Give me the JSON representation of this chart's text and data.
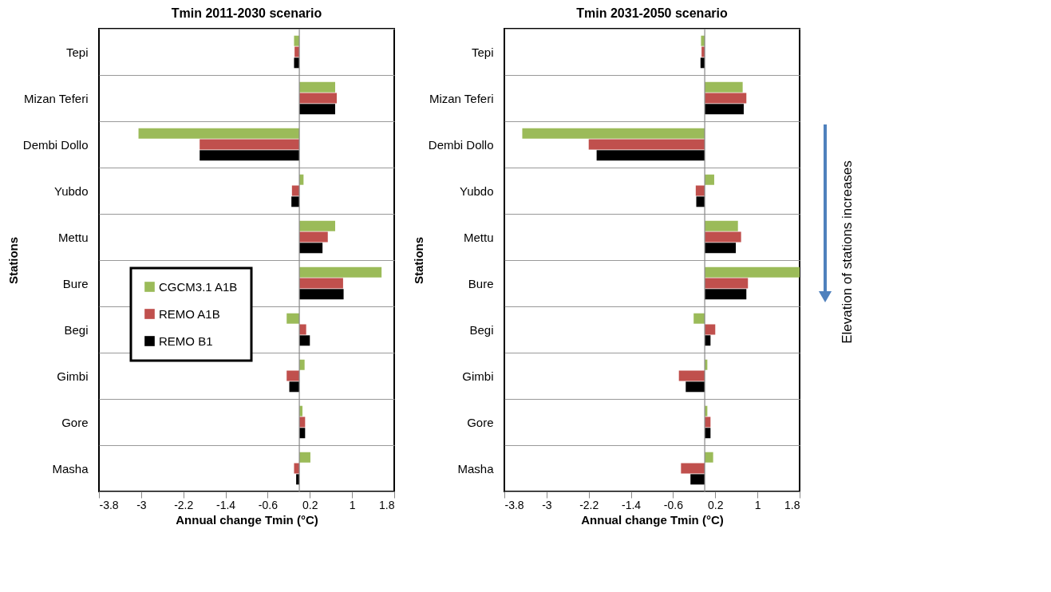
{
  "chart_data": [
    {
      "type": "bar",
      "orientation": "horizontal",
      "title": "Tmin 2011-2030 scenario",
      "xlabel": "Annual change Tmin (°C)",
      "ylabel": "Stations",
      "categories": [
        "Tepi",
        "Mizan Teferi",
        "Dembi Dollo",
        "Yubdo",
        "Mettu",
        "Bure",
        "Begi",
        "Gimbi",
        "Gore",
        "Masha"
      ],
      "series": [
        {
          "name": "CGCM3.1 A1B",
          "color": "#9bbb59",
          "values": [
            -0.1,
            0.68,
            -3.05,
            0.08,
            0.68,
            1.56,
            -0.24,
            0.1,
            0.06,
            0.21
          ]
        },
        {
          "name": "REMO A1B",
          "color": "#c0504d",
          "values": [
            -0.09,
            0.71,
            -1.89,
            -0.14,
            0.54,
            0.83,
            0.13,
            -0.24,
            0.11,
            -0.1
          ]
        },
        {
          "name": "REMO B1",
          "color": "#000000",
          "values": [
            -0.1,
            0.68,
            -1.89,
            -0.15,
            0.44,
            0.84,
            0.2,
            -0.19,
            0.11,
            -0.06
          ]
        }
      ],
      "xlim": [
        -3.8,
        1.8
      ],
      "xticks": [
        -3.8,
        -3,
        -2.2,
        -1.4,
        -0.6,
        0.2,
        1,
        1.8
      ],
      "grid": "y",
      "legend": "left",
      "ref_lines": [
        {
          "axis": "x",
          "value": 0
        }
      ]
    },
    {
      "type": "bar",
      "orientation": "horizontal",
      "title": "Tmin 2031-2050 scenario",
      "xlabel": "Annual change Tmin (°C)",
      "ylabel": "Stations",
      "categories": [
        "Tepi",
        "Mizan Teferi",
        "Dembi Dollo",
        "Yubdo",
        "Mettu",
        "Bure",
        "Begi",
        "Gimbi",
        "Gore",
        "Masha"
      ],
      "series": [
        {
          "name": "CGCM3.1 A1B",
          "color": "#9bbb59",
          "values": [
            -0.07,
            0.72,
            -3.46,
            0.18,
            0.63,
            1.8,
            -0.21,
            0.05,
            0.05,
            0.16
          ]
        },
        {
          "name": "REMO A1B",
          "color": "#c0504d",
          "values": [
            -0.06,
            0.79,
            -2.2,
            -0.17,
            0.69,
            0.82,
            0.2,
            -0.49,
            0.11,
            -0.45
          ]
        },
        {
          "name": "REMO B1",
          "color": "#000000",
          "values": [
            -0.08,
            0.74,
            -2.05,
            -0.16,
            0.59,
            0.79,
            0.11,
            -0.36,
            0.11,
            -0.27
          ]
        }
      ],
      "xlim": [
        -3.8,
        1.8
      ],
      "xticks": [
        -3.8,
        -3,
        -2.2,
        -1.4,
        -0.6,
        0.2,
        1,
        1.8
      ],
      "grid": "y",
      "legend": "left",
      "ref_lines": [
        {
          "axis": "x",
          "value": 0
        }
      ],
      "annotations": [
        "Elevation of stations increases"
      ]
    }
  ]
}
